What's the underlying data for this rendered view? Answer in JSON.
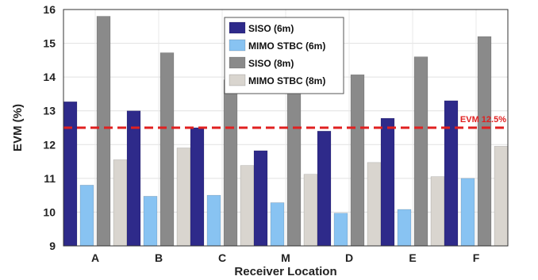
{
  "chart_data": {
    "type": "bar",
    "categories": [
      "A",
      "B",
      "C",
      "M",
      "D",
      "E",
      "F"
    ],
    "series": [
      {
        "name": "SISO (6m)",
        "color": "#2e2a8a",
        "values": [
          13.27,
          13.0,
          12.5,
          11.82,
          12.4,
          12.78,
          13.3
        ]
      },
      {
        "name": "MIMO STBC (6m)",
        "color": "#88c3f2",
        "values": [
          10.8,
          10.47,
          10.5,
          10.28,
          9.97,
          10.08,
          11.0
        ]
      },
      {
        "name": "SISO (8m)",
        "color": "#8a8a8a",
        "values": [
          15.8,
          14.72,
          13.92,
          13.7,
          14.07,
          14.6,
          15.2
        ]
      },
      {
        "name": "MIMO STBC (8m)",
        "color": "#d9d5cf",
        "values": [
          11.55,
          11.9,
          11.38,
          11.12,
          11.47,
          11.05,
          11.95
        ]
      }
    ],
    "xlabel": "Receiver Location",
    "ylabel": "EVM (%)",
    "ylim": [
      9,
      16
    ],
    "yticks": [
      9,
      10,
      11,
      12,
      13,
      14,
      15,
      16
    ],
    "grid": true,
    "legend_position": "top-center",
    "reference_line": {
      "value": 12.5,
      "label": "EVM 12.5%",
      "color": "#e02020",
      "style": "dashed"
    }
  }
}
